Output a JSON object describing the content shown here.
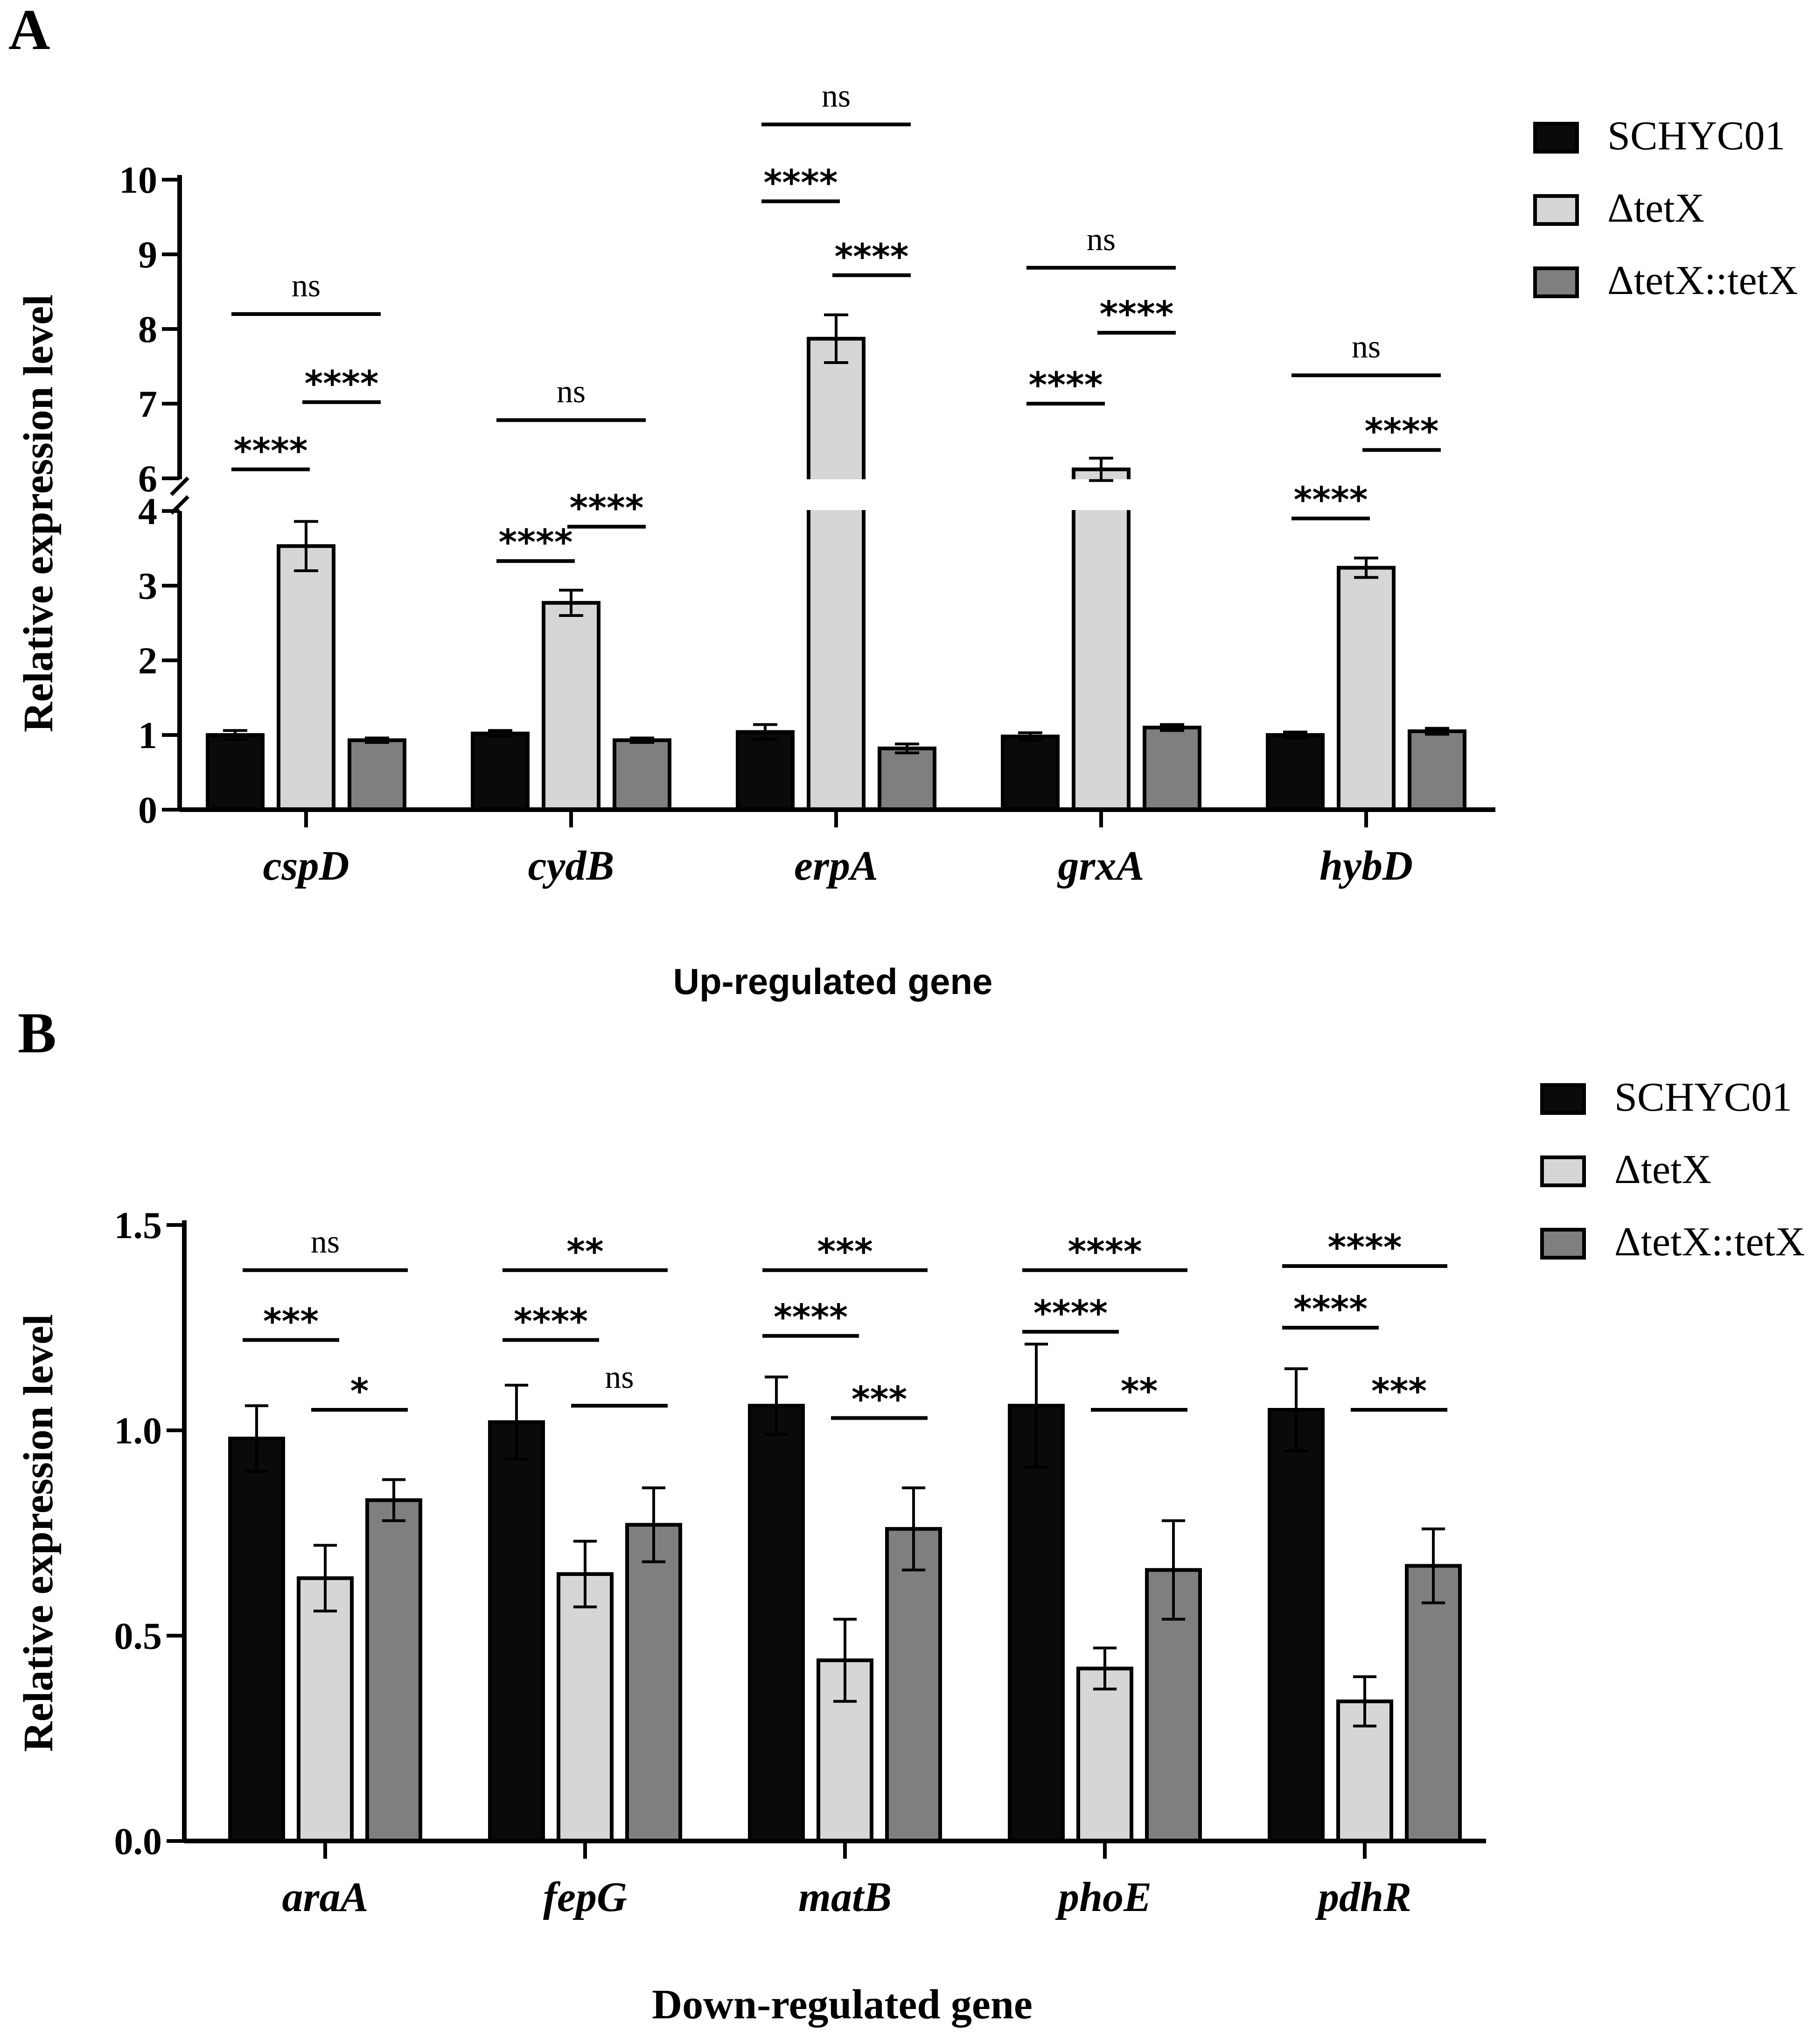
{
  "colors": {
    "SCHYC01": "#0a0a0a",
    "deltaTetX": "#d6d6d6",
    "complement": "#7f7f7f",
    "axis": "#000000"
  },
  "panels": {
    "A": {
      "letter": "A"
    },
    "B": {
      "letter": "B"
    }
  },
  "chart_data": [
    {
      "id": "A",
      "type": "bar",
      "ylabel": "Relative expression level",
      "xlabel": "Up-regulated gene",
      "ylim": [
        0,
        10
      ],
      "y_break": [
        4,
        6
      ],
      "lower_ticks": [
        "0",
        "1",
        "2",
        "3",
        "4"
      ],
      "upper_ticks": [
        "6",
        "7",
        "8",
        "9",
        "10"
      ],
      "categories": [
        "cspD",
        "cydB",
        "erpA",
        "grxA",
        "hybD"
      ],
      "legend": [
        "SCHYC01",
        "ΔtetX",
        "ΔtetX::tetX"
      ],
      "series": [
        {
          "name": "SCHYC01",
          "values": [
            1.0,
            1.02,
            1.04,
            0.98,
            1.0
          ],
          "err": [
            0.06,
            0.04,
            0.1,
            0.05,
            0.04
          ]
        },
        {
          "name": "ΔtetX",
          "values": [
            3.53,
            2.77,
            7.87,
            6.12,
            3.24
          ],
          "err": [
            0.33,
            0.17,
            0.32,
            0.15,
            0.13
          ]
        },
        {
          "name": "ΔtetX::tetX",
          "values": [
            0.93,
            0.93,
            0.82,
            1.1,
            1.05
          ],
          "err": [
            0.03,
            0.03,
            0.06,
            0.04,
            0.04
          ]
        }
      ],
      "significance": [
        {
          "group": 0,
          "from": 0,
          "to": 2,
          "y": 8.2,
          "label": "ns"
        },
        {
          "group": 0,
          "from": 0,
          "to": 1,
          "y": 6.12,
          "label": "****"
        },
        {
          "group": 0,
          "from": 1,
          "to": 2,
          "y": 7.02,
          "label": "****"
        },
        {
          "group": 1,
          "from": 0,
          "to": 2,
          "y": 6.78,
          "label": "ns"
        },
        {
          "group": 1,
          "from": 0,
          "to": 1,
          "y": 3.33,
          "label": "****"
        },
        {
          "group": 1,
          "from": 1,
          "to": 2,
          "y": 3.79,
          "label": "****"
        },
        {
          "group": 2,
          "from": 0,
          "to": 2,
          "y": 10.74,
          "label": "ns"
        },
        {
          "group": 2,
          "from": 0,
          "to": 1,
          "y": 9.71,
          "label": "****"
        },
        {
          "group": 2,
          "from": 1,
          "to": 2,
          "y": 8.72,
          "label": "****"
        },
        {
          "group": 3,
          "from": 0,
          "to": 2,
          "y": 8.82,
          "label": "ns"
        },
        {
          "group": 3,
          "from": 0,
          "to": 1,
          "y": 7.0,
          "label": "****"
        },
        {
          "group": 3,
          "from": 1,
          "to": 2,
          "y": 7.95,
          "label": "****"
        },
        {
          "group": 4,
          "from": 0,
          "to": 2,
          "y": 7.38,
          "label": "ns"
        },
        {
          "group": 4,
          "from": 0,
          "to": 1,
          "y": 3.9,
          "label": "****"
        },
        {
          "group": 4,
          "from": 1,
          "to": 2,
          "y": 6.38,
          "label": "****"
        }
      ]
    },
    {
      "id": "B",
      "type": "bar",
      "ylabel": "Relative expression level",
      "xlabel": "Down-regulated gene",
      "ylim": [
        0,
        1.5
      ],
      "ticks": [
        "0.0",
        "0.5",
        "1.0",
        "1.5"
      ],
      "categories": [
        "araA",
        "fepG",
        "matB",
        "phoE",
        "pdhR"
      ],
      "legend": [
        "SCHYC01",
        "ΔtetX",
        "ΔtetX::tetX"
      ],
      "series": [
        {
          "name": "SCHYC01",
          "values": [
            0.98,
            1.02,
            1.06,
            1.06,
            1.05
          ],
          "err": [
            0.08,
            0.09,
            0.07,
            0.15,
            0.1
          ]
        },
        {
          "name": "ΔtetX",
          "values": [
            0.64,
            0.65,
            0.44,
            0.42,
            0.34
          ],
          "err": [
            0.08,
            0.08,
            0.1,
            0.05,
            0.06
          ]
        },
        {
          "name": "ΔtetX::tetX",
          "values": [
            0.83,
            0.77,
            0.76,
            0.66,
            0.67
          ],
          "err": [
            0.05,
            0.09,
            0.1,
            0.12,
            0.09
          ]
        }
      ],
      "significance": [
        {
          "group": 0,
          "from": 0,
          "to": 2,
          "y": 1.39,
          "label": "ns"
        },
        {
          "group": 0,
          "from": 0,
          "to": 1,
          "y": 1.22,
          "label": "***"
        },
        {
          "group": 0,
          "from": 1,
          "to": 2,
          "y": 1.05,
          "label": "*"
        },
        {
          "group": 1,
          "from": 0,
          "to": 2,
          "y": 1.39,
          "label": "**"
        },
        {
          "group": 1,
          "from": 0,
          "to": 1,
          "y": 1.22,
          "label": "****"
        },
        {
          "group": 1,
          "from": 1,
          "to": 2,
          "y": 1.06,
          "label": "ns"
        },
        {
          "group": 2,
          "from": 0,
          "to": 2,
          "y": 1.39,
          "label": "***"
        },
        {
          "group": 2,
          "from": 0,
          "to": 1,
          "y": 1.23,
          "label": "****"
        },
        {
          "group": 2,
          "from": 1,
          "to": 2,
          "y": 1.03,
          "label": "***"
        },
        {
          "group": 3,
          "from": 0,
          "to": 2,
          "y": 1.39,
          "label": "****"
        },
        {
          "group": 3,
          "from": 0,
          "to": 1,
          "y": 1.24,
          "label": "****"
        },
        {
          "group": 3,
          "from": 1,
          "to": 2,
          "y": 1.05,
          "label": "**"
        },
        {
          "group": 4,
          "from": 0,
          "to": 2,
          "y": 1.4,
          "label": "****"
        },
        {
          "group": 4,
          "from": 0,
          "to": 1,
          "y": 1.25,
          "label": "****"
        },
        {
          "group": 4,
          "from": 1,
          "to": 2,
          "y": 1.05,
          "label": "***"
        }
      ]
    }
  ]
}
